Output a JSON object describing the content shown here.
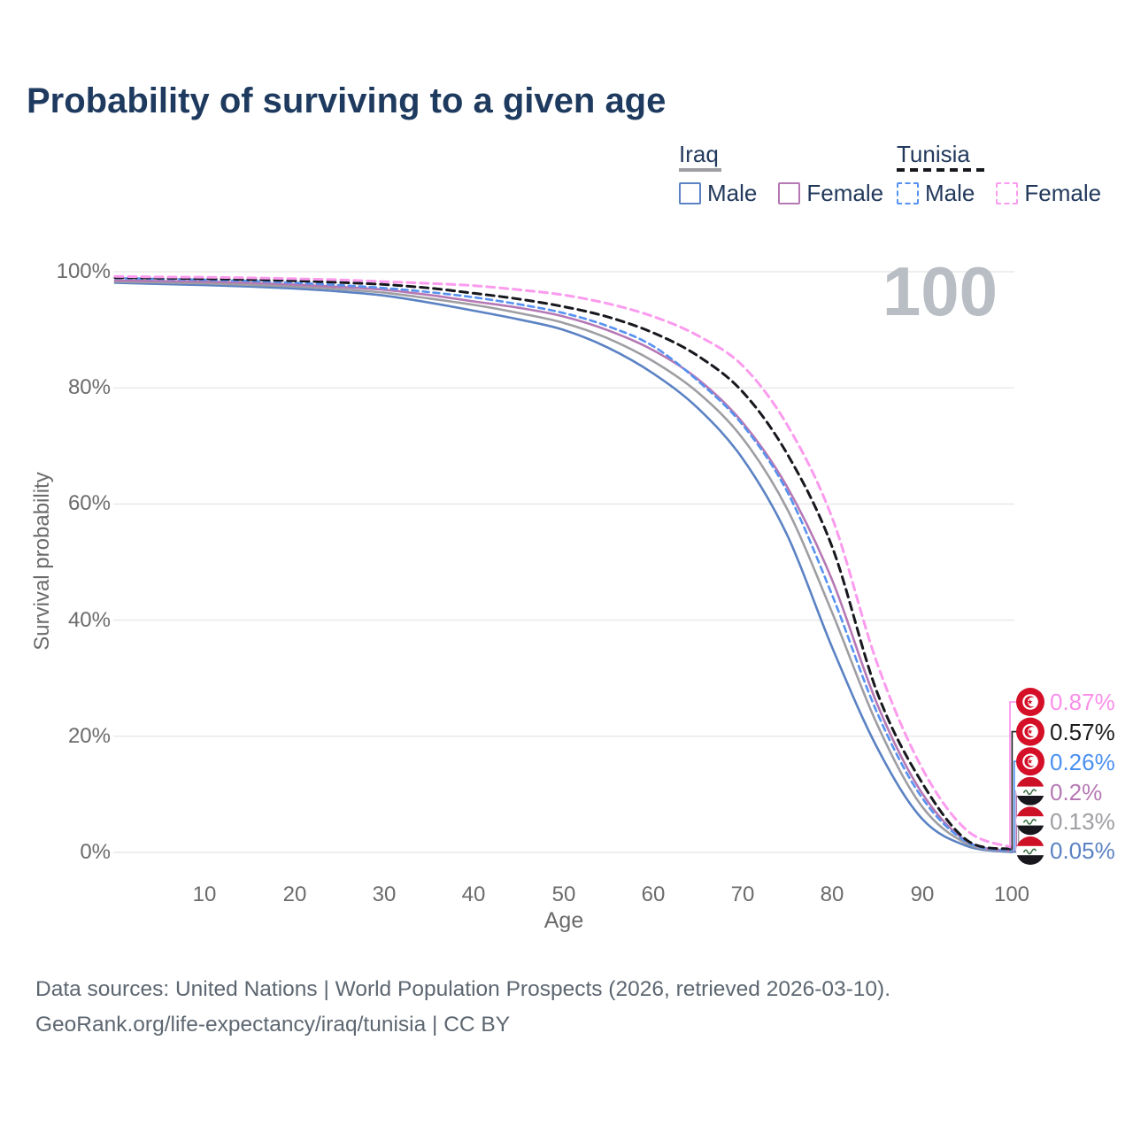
{
  "title": "Probability of surviving to a given age",
  "watermark": "100",
  "legend": {
    "groups": [
      {
        "label": "Iraq",
        "line_style": "solid",
        "line_color": "#9e9ea3",
        "items": [
          {
            "label": "Male",
            "color": "#5b82c3",
            "style": "solid"
          },
          {
            "label": "Female",
            "color": "#b678b4",
            "style": "solid"
          }
        ]
      },
      {
        "label": "Tunisia",
        "line_style": "dashed",
        "line_color": "#16181d",
        "items": [
          {
            "label": "Male",
            "color": "#5792f0",
            "style": "dashed"
          },
          {
            "label": "Female",
            "color": "#fb9bee",
            "style": "dashed"
          }
        ]
      }
    ]
  },
  "axes": {
    "y_title": "Survival probability",
    "x_title": "Age",
    "y_ticks": [
      "100%",
      "80%",
      "60%",
      "40%",
      "20%",
      "0%"
    ],
    "x_ticks": [
      "10",
      "20",
      "30",
      "40",
      "50",
      "60",
      "70",
      "80",
      "90",
      "100"
    ]
  },
  "end_labels": [
    {
      "flag": "tunisia",
      "value": "0.87%",
      "color": "#fa8fe9"
    },
    {
      "flag": "tunisia",
      "value": "0.57%",
      "color": "#1c1c1c"
    },
    {
      "flag": "tunisia",
      "value": "0.26%",
      "color": "#4a90f2"
    },
    {
      "flag": "iraq",
      "value": "0.2%",
      "color": "#b678b4"
    },
    {
      "flag": "iraq",
      "value": "0.13%",
      "color": "#9e9ea3"
    },
    {
      "flag": "iraq",
      "value": "0.05%",
      "color": "#5b82c3"
    }
  ],
  "footer": {
    "line1": "Data sources: United Nations | World Population Prospects (2026, retrieved 2026-03-10).",
    "line2": "GeoRank.org/life-expectancy/iraq/tunisia | CC BY"
  },
  "chart_data": {
    "type": "line",
    "title": "Probability of surviving to a given age",
    "xlabel": "Age",
    "ylabel": "Survival probability",
    "xlim": [
      0,
      100
    ],
    "ylim": [
      0,
      100
    ],
    "grid": "horizontal",
    "y_gridlines_pct": [
      0,
      20,
      40,
      60,
      80,
      100
    ],
    "legend_position": "top-right",
    "x": [
      0,
      5,
      10,
      15,
      20,
      25,
      30,
      35,
      40,
      45,
      50,
      55,
      60,
      65,
      70,
      75,
      80,
      85,
      90,
      95,
      100
    ],
    "series": [
      {
        "name": "Iraq Male",
        "country": "Iraq",
        "sex": "male",
        "color": "#5b82c3",
        "dash": null,
        "width": 2.6,
        "values": [
          98.1,
          97.9,
          97.7,
          97.45,
          97.1,
          96.6,
          95.9,
          94.7,
          93.3,
          91.8,
          90.0,
          86.9,
          82.5,
          76.5,
          67.8,
          54.5,
          35.2,
          18.0,
          5.8,
          1.1,
          0.05
        ]
      },
      {
        "name": "Iraq",
        "country": "Iraq",
        "sex": "both",
        "color": "#9e9ea3",
        "dash": null,
        "width": 2.6,
        "values": [
          98.3,
          98.15,
          98.0,
          97.75,
          97.45,
          97.0,
          96.4,
          95.4,
          94.3,
          92.9,
          91.2,
          88.5,
          84.6,
          79.2,
          71.3,
          59.0,
          41.2,
          22.0,
          7.9,
          1.5,
          0.13
        ]
      },
      {
        "name": "Iraq Female",
        "country": "Iraq",
        "sex": "female",
        "color": "#b678b4",
        "dash": null,
        "width": 2.6,
        "values": [
          98.5,
          98.4,
          98.3,
          98.1,
          97.8,
          97.4,
          96.9,
          96.0,
          94.9,
          93.8,
          92.3,
          89.9,
          86.5,
          81.5,
          74.0,
          62.8,
          46.8,
          25.5,
          10.2,
          1.9,
          0.2
        ]
      },
      {
        "name": "Tunisia Male",
        "country": "Tunisia",
        "sex": "male",
        "color": "#5792f0",
        "dash": "7 5",
        "width": 2.6,
        "values": [
          98.9,
          98.75,
          98.6,
          98.4,
          98.1,
          97.7,
          97.2,
          96.5,
          95.6,
          94.4,
          92.9,
          90.6,
          87.2,
          81.2,
          73.6,
          62.0,
          44.2,
          24.0,
          9.4,
          1.8,
          0.26
        ]
      },
      {
        "name": "Tunisia",
        "country": "Tunisia",
        "sex": "both",
        "color": "#16181d",
        "dash": "9 6",
        "width": 3,
        "values": [
          99.0,
          98.9,
          98.8,
          98.65,
          98.45,
          98.15,
          97.8,
          97.2,
          96.3,
          95.3,
          94.0,
          92.2,
          89.5,
          85.5,
          79.3,
          68.5,
          52.5,
          27.5,
          12.0,
          2.1,
          0.57
        ]
      },
      {
        "name": "Tunisia Female",
        "country": "Tunisia",
        "sex": "female",
        "color": "#fb9bee",
        "dash": "9 6",
        "width": 3,
        "values": [
          99.2,
          99.1,
          99.05,
          98.95,
          98.8,
          98.6,
          98.3,
          98.0,
          97.6,
          96.9,
          96.0,
          94.5,
          92.3,
          89.0,
          83.8,
          73.5,
          57.5,
          32.5,
          14.5,
          3.8,
          0.87
        ]
      }
    ]
  }
}
